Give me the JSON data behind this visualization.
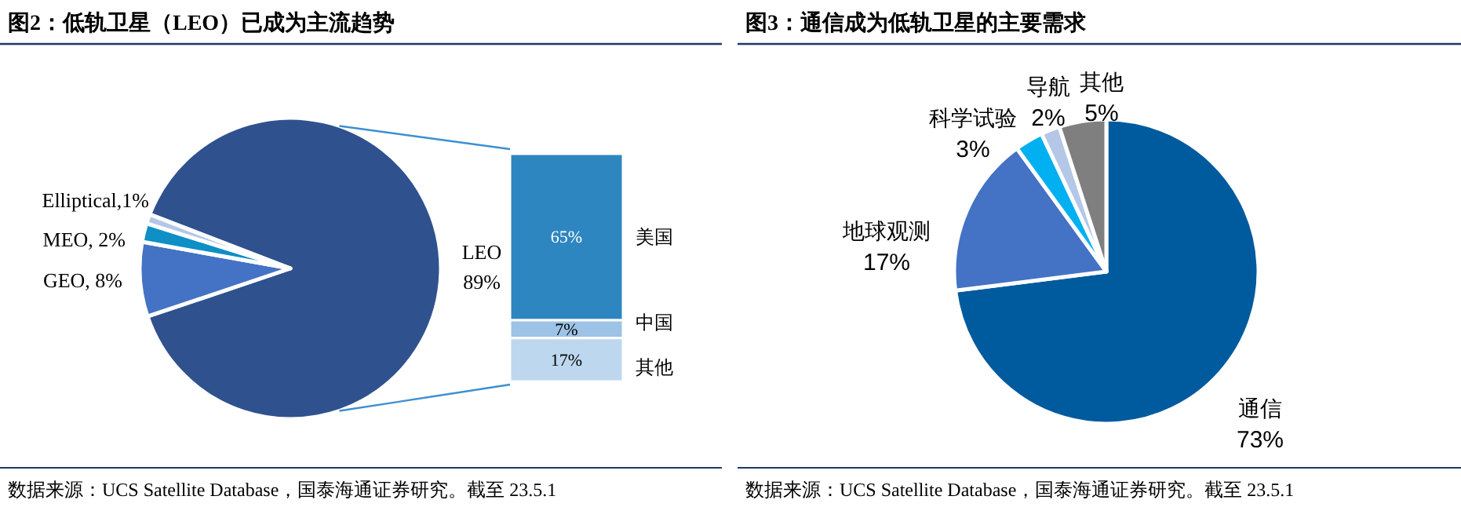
{
  "chart_data": [
    {
      "type": "pie",
      "title": "图2：低轨卫星（LEO）已成为主流趋势",
      "categories": [
        "LEO",
        "GEO",
        "MEO",
        "Elliptical"
      ],
      "values": [
        89,
        8,
        2,
        1
      ],
      "colors": [
        "#2f528f",
        "#4472c4",
        "#0e8fc6",
        "#b4c7e7"
      ],
      "value_labels": [
        "89%",
        ", 8%",
        ", 2%",
        ",1%"
      ],
      "annotations": [
        "数据来源：UCS Satellite Database，国泰海通证券研究。截至 23.5.1"
      ]
    },
    {
      "type": "bar",
      "stacked": true,
      "categories": [
        null
      ],
      "series": [
        {
          "name": "其他",
          "color": "#bdd7ee",
          "values": [
            17
          ],
          "value_labels": [
            "17%"
          ]
        },
        {
          "name": "中国",
          "color": "#9dc3e6",
          "values": [
            7
          ],
          "value_labels": [
            "7%"
          ]
        },
        {
          "name": "美国",
          "color": "#2e86c1",
          "values": [
            65
          ],
          "value_labels": [
            "65%"
          ]
        }
      ]
    },
    {
      "type": "pie",
      "title": "图3：通信成为低轨卫星的主要需求",
      "categories": [
        "通信",
        "地球观测",
        "科学试验",
        "导航",
        "其他"
      ],
      "values": [
        73,
        17,
        3,
        2,
        5
      ],
      "colors": [
        "#005a9e",
        "#4472c4",
        "#00b0f0",
        "#b4c7e7",
        "#7f7f7f"
      ],
      "value_labels": [
        "73%",
        "17%",
        "3%",
        "2%",
        "5%"
      ],
      "annotations": [
        "数据来源：UCS Satellite Database，国泰海通证券研究。截至 23.5.1"
      ]
    }
  ]
}
